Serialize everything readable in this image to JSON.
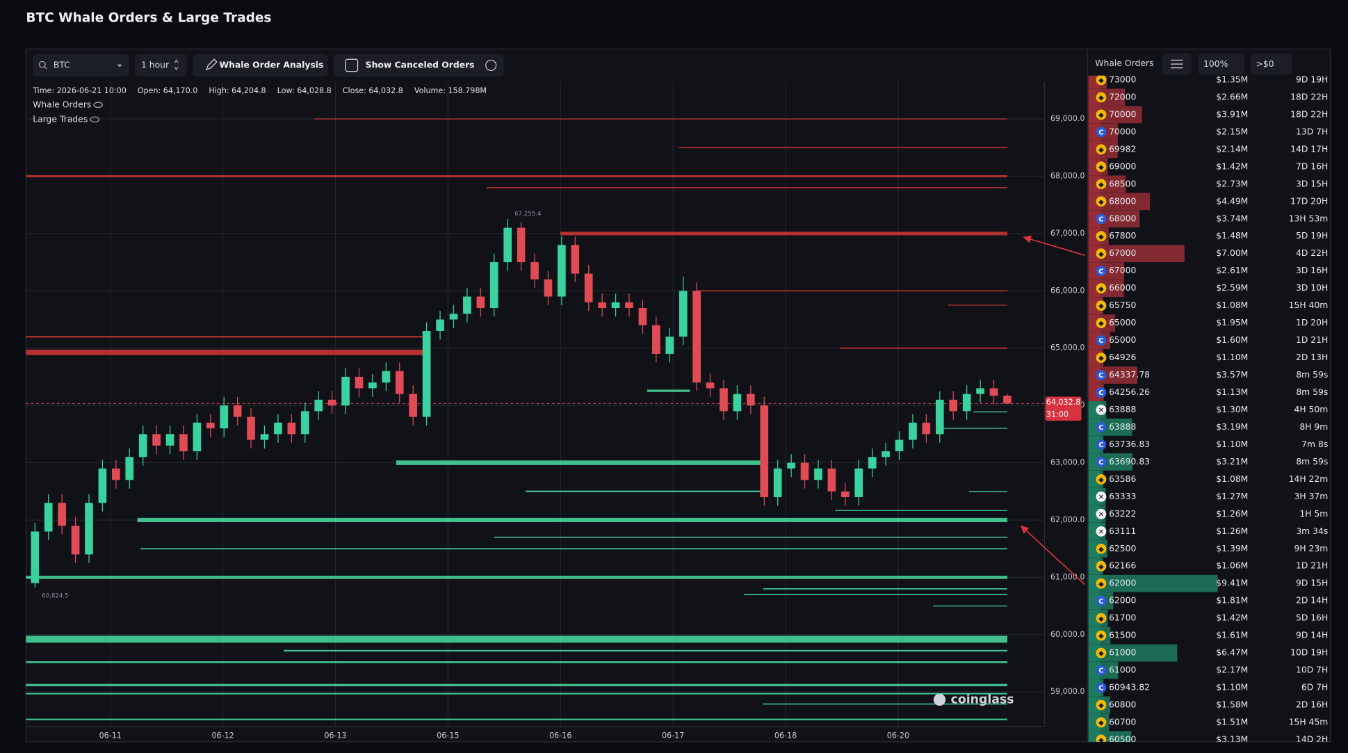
{
  "header": {
    "title": "BTC Whale Orders & Large Trades"
  },
  "toolbar": {
    "symbol": "BTC",
    "interval": "1 hour",
    "analysis_button": "Whale Order Analysis",
    "canceled_toggle": "Show Canceled Orders"
  },
  "chart_data": {
    "type": "candlestick",
    "info": [
      "Time: 2026-06-21 10:00",
      "Open: 64,170.0",
      "High: 64,204.8",
      "Low: 64,028.8",
      "Close: 64,032.8",
      "Volume: 158.798M"
    ],
    "legend": [
      "Whale Orders",
      "Large Trades"
    ],
    "up_color": "#3ad29f",
    "down_color": "#e04b55",
    "x": [
      0.33,
      0.45,
      0.57,
      0.69,
      0.81,
      0.93,
      1.05,
      1.17,
      1.29,
      1.41,
      1.53,
      1.65,
      1.77,
      1.89,
      2.01,
      2.13,
      2.25,
      2.37,
      2.49,
      2.61,
      2.73,
      2.85,
      2.97,
      3.09,
      3.21,
      3.33,
      3.45,
      3.57,
      3.69,
      3.81,
      3.93,
      4.05,
      4.17,
      4.29,
      4.41,
      4.53,
      4.65,
      4.77,
      4.89,
      5.01,
      5.13,
      5.25,
      5.37,
      5.49,
      5.61,
      5.73,
      5.85,
      5.97,
      6.09,
      6.21,
      6.33,
      6.45,
      6.57,
      6.69,
      6.81,
      6.93,
      7.05,
      7.17,
      7.29,
      7.41,
      7.53,
      7.65,
      7.77,
      7.89,
      8.01,
      8.13,
      8.25,
      8.37,
      8.49,
      8.61,
      8.73,
      8.85,
      8.97
    ],
    "open": [
      60900,
      61800,
      62300,
      61900,
      61400,
      62300,
      62900,
      62700,
      63100,
      63500,
      63300,
      63500,
      63200,
      63700,
      63600,
      64000,
      63800,
      63400,
      63500,
      63700,
      63500,
      63900,
      64100,
      64000,
      64500,
      64300,
      64400,
      64600,
      64200,
      63800,
      65300,
      65500,
      65600,
      65900,
      65700,
      66500,
      67100,
      66500,
      66200,
      65900,
      66800,
      66300,
      65800,
      65700,
      65800,
      65700,
      65400,
      64900,
      65200,
      66000,
      64400,
      64300,
      63900,
      64200,
      64000,
      62400,
      62900,
      63000,
      62700,
      62900,
      62500,
      62400,
      62900,
      63100,
      63200,
      63400,
      63700,
      63500,
      64100,
      63900,
      64200,
      64300,
      64170
    ],
    "high": [
      61950,
      62450,
      62450,
      62050,
      62450,
      63050,
      63050,
      63250,
      63650,
      63650,
      63650,
      63650,
      63850,
      63850,
      64150,
      64150,
      63950,
      63650,
      63850,
      63850,
      64050,
      64250,
      64250,
      64650,
      64650,
      64550,
      64750,
      64750,
      64350,
      65450,
      65650,
      65750,
      66050,
      66050,
      66650,
      67255.4,
      67200,
      66650,
      66350,
      66950,
      66950,
      66450,
      65950,
      65950,
      65950,
      65850,
      65550,
      65350,
      66250,
      66150,
      64550,
      64450,
      64350,
      64350,
      64150,
      63050,
      63150,
      63150,
      63050,
      63050,
      62650,
      63050,
      63250,
      63350,
      63550,
      63850,
      63850,
      64250,
      64250,
      64350,
      64450,
      64450,
      64204.8
    ],
    "low": [
      60824.5,
      61650,
      61750,
      61250,
      61250,
      62150,
      62550,
      62550,
      62950,
      63150,
      63150,
      63050,
      63050,
      63450,
      63450,
      63650,
      63250,
      63250,
      63350,
      63350,
      63350,
      63750,
      63850,
      63850,
      64150,
      64150,
      64250,
      64050,
      63650,
      63650,
      65150,
      65350,
      65450,
      65550,
      65550,
      66350,
      66350,
      66050,
      65750,
      65750,
      66150,
      65650,
      65550,
      65550,
      65550,
      65250,
      64750,
      64750,
      65050,
      64250,
      64150,
      63750,
      63750,
      63850,
      62250,
      62250,
      62750,
      62550,
      62550,
      62350,
      62250,
      62250,
      62750,
      62950,
      63050,
      63250,
      63350,
      63350,
      63750,
      63750,
      64050,
      64020,
      64028.8
    ],
    "close": [
      61800,
      62300,
      61900,
      61400,
      62300,
      62900,
      62700,
      63100,
      63500,
      63300,
      63500,
      63200,
      63700,
      63600,
      64000,
      63800,
      63400,
      63500,
      63700,
      63500,
      63900,
      64100,
      64000,
      64500,
      64300,
      64400,
      64600,
      64200,
      63800,
      65300,
      65500,
      65600,
      65900,
      65700,
      66500,
      67100,
      66500,
      66200,
      65900,
      66800,
      66300,
      65800,
      65700,
      65800,
      65700,
      65400,
      64900,
      65200,
      66000,
      64400,
      64300,
      63900,
      64200,
      64000,
      62400,
      62900,
      63000,
      62700,
      62900,
      62500,
      62400,
      62900,
      63100,
      63200,
      63400,
      63700,
      63500,
      64100,
      63900,
      64200,
      64300,
      64170,
      64032.8
    ],
    "xlim": [
      0.25,
      9.3
    ],
    "xticks": [
      {
        "value": 1,
        "label": "06-11"
      },
      {
        "value": 2,
        "label": "06-12"
      },
      {
        "value": 3,
        "label": "06-13"
      },
      {
        "value": 4,
        "label": "06-15"
      },
      {
        "value": 5,
        "label": "06-16"
      },
      {
        "value": 6,
        "label": "06-17"
      },
      {
        "value": 7,
        "label": "06-18"
      },
      {
        "value": 8,
        "label": "06-20"
      }
    ],
    "ylim": [
      58400,
      69650
    ],
    "yticks": [
      {
        "value": 59000,
        "label": "59,000.0"
      },
      {
        "value": 60000,
        "label": "60,000.0"
      },
      {
        "value": 61000,
        "label": "61,000.0"
      },
      {
        "value": 62000,
        "label": "62,000.0"
      },
      {
        "value": 63000,
        "label": "63,000.0"
      },
      {
        "value": 64000,
        "label": "64,000.0"
      },
      {
        "value": 65000,
        "label": "65,000.0"
      },
      {
        "value": 66000,
        "label": "66,000.0"
      },
      {
        "value": 67000,
        "label": "67,000.0"
      },
      {
        "value": 68000,
        "label": "68,000.0"
      },
      {
        "value": 69000,
        "label": "69,000.0"
      }
    ],
    "grid": true,
    "sell_lines": {
      "color": "#c93434",
      "price": [
        69000,
        68500,
        68000,
        67800,
        67000,
        66000,
        65750,
        65200,
        64926,
        65000
      ],
      "start": [
        2.81,
        6.05,
        0.25,
        4.34,
        5.0,
        6.21,
        8.44,
        0.25,
        0.25,
        7.48
      ],
      "end": [
        8.97,
        8.97,
        8.97,
        8.97,
        8.97,
        8.97,
        8.97,
        3.81,
        3.81,
        8.97
      ],
      "size": [
        1.2,
        1.4,
        2.5,
        1.5,
        4.5,
        1.5,
        1.1,
        2.0,
        7.0,
        1.6
      ]
    },
    "buy_lines": {
      "color": "#46d39a",
      "price": [
        64256,
        63888,
        63600,
        63000,
        62500,
        62500,
        62166,
        62000,
        61700,
        61500,
        61000,
        60800,
        60700,
        60500,
        59920,
        59720,
        59520,
        59120,
        58970,
        58790,
        58520
      ],
      "start": [
        5.77,
        8.67,
        8.4,
        3.54,
        4.69,
        8.63,
        7.44,
        1.24,
        4.41,
        1.27,
        0.25,
        6.8,
        6.63,
        8.31,
        0.25,
        2.54,
        0.25,
        0.25,
        0.25,
        6.8,
        0.25
      ],
      "end": [
        6.15,
        8.97,
        8.97,
        6.79,
        6.79,
        8.97,
        8.97,
        8.97,
        8.97,
        8.97,
        8.97,
        8.97,
        8.97,
        8.97,
        8.97,
        8.97,
        8.97,
        8.97,
        8.97,
        8.97,
        8.97
      ],
      "size": [
        3,
        1.3,
        1,
        6,
        2,
        1.4,
        1.2,
        5.5,
        1.4,
        1.6,
        4,
        1.5,
        1.5,
        1.2,
        9,
        2,
        2.5,
        3,
        2,
        1.5,
        2
      ]
    },
    "annotations": [
      {
        "x": 4.53,
        "y": 67255.4,
        "label": "67,255.4"
      },
      {
        "x": 0.33,
        "y": 60824.5,
        "label": "60,824.5"
      }
    ],
    "last_price": {
      "value": 64032.8,
      "label": "64,032.8",
      "countdown": "31:00"
    },
    "watermark": "coinglass"
  },
  "orders_panel": {
    "title": "Whale Orders",
    "zoom": "100%",
    "filter": ">$0",
    "sell_color": "#a8303a",
    "buy_color": "#1f8a6a",
    "exchanges": [
      {
        "glyph": "◆",
        "color": "#f0b90b",
        "text_color": "#1a1a1a"
      },
      {
        "glyph": "C",
        "color": "#2a5ada",
        "text_color": "#ffffff"
      },
      {
        "glyph": "✕",
        "color": "#f2f2f2",
        "text_color": "#111111"
      }
    ],
    "sell_orders": [
      {
        "price": 73000,
        "exchange": 0,
        "amount": 1.35,
        "amount_label": "$1.35M",
        "age": "9D 19H"
      },
      {
        "price": 72000,
        "exchange": 0,
        "amount": 2.66,
        "amount_label": "$2.66M",
        "age": "18D 22H"
      },
      {
        "price": 70000,
        "exchange": 0,
        "amount": 3.91,
        "amount_label": "$3.91M",
        "age": "18D 22H"
      },
      {
        "price": 70000,
        "exchange": 1,
        "amount": 2.15,
        "amount_label": "$2.15M",
        "age": "13D 7H"
      },
      {
        "price": 69982,
        "exchange": 0,
        "amount": 2.14,
        "amount_label": "$2.14M",
        "age": "14D 17H"
      },
      {
        "price": 69000,
        "exchange": 0,
        "amount": 1.42,
        "amount_label": "$1.42M",
        "age": "7D 16H"
      },
      {
        "price": 68500,
        "exchange": 0,
        "amount": 2.73,
        "amount_label": "$2.73M",
        "age": "3D 15H"
      },
      {
        "price": 68000,
        "exchange": 0,
        "amount": 4.49,
        "amount_label": "$4.49M",
        "age": "17D 20H"
      },
      {
        "price": 68000,
        "exchange": 1,
        "amount": 3.74,
        "amount_label": "$3.74M",
        "age": "13H 53m"
      },
      {
        "price": 67800,
        "exchange": 0,
        "amount": 1.48,
        "amount_label": "$1.48M",
        "age": "5D 19H"
      },
      {
        "price": 67000,
        "exchange": 0,
        "amount": 7,
        "amount_label": "$7.00M",
        "age": "4D 22H"
      },
      {
        "price": 67000,
        "exchange": 1,
        "amount": 2.61,
        "amount_label": "$2.61M",
        "age": "3D 16H"
      },
      {
        "price": 66000,
        "exchange": 0,
        "amount": 2.59,
        "amount_label": "$2.59M",
        "age": "3D 10H"
      },
      {
        "price": 65750,
        "exchange": 0,
        "amount": 1.08,
        "amount_label": "$1.08M",
        "age": "15H 40m"
      },
      {
        "price": 65000,
        "exchange": 0,
        "amount": 1.95,
        "amount_label": "$1.95M",
        "age": "1D 20H"
      },
      {
        "price": 65000,
        "exchange": 1,
        "amount": 1.6,
        "amount_label": "$1.60M",
        "age": "1D 21H"
      },
      {
        "price": 64926,
        "exchange": 0,
        "amount": 1.1,
        "amount_label": "$1.10M",
        "age": "2D 13H"
      },
      {
        "price": 64337.78,
        "exchange": 1,
        "amount": 3.57,
        "amount_label": "$3.57M",
        "age": "8m 59s"
      },
      {
        "price": 64256.26,
        "exchange": 1,
        "amount": 1.13,
        "amount_label": "$1.13M",
        "age": "8m 59s"
      }
    ],
    "buy_orders": [
      {
        "price": 63888,
        "exchange": 2,
        "amount": 1.3,
        "amount_label": "$1.30M",
        "age": "4H 50m"
      },
      {
        "price": 63888,
        "exchange": 1,
        "amount": 3.19,
        "amount_label": "$3.19M",
        "age": "8H 9m"
      },
      {
        "price": 63736.83,
        "exchange": 1,
        "amount": 1.1,
        "amount_label": "$1.10M",
        "age": "7m 8s"
      },
      {
        "price": 63690.83,
        "exchange": 1,
        "amount": 3.21,
        "amount_label": "$3.21M",
        "age": "8m 59s"
      },
      {
        "price": 63586,
        "exchange": 0,
        "amount": 1.08,
        "amount_label": "$1.08M",
        "age": "14H 22m"
      },
      {
        "price": 63333,
        "exchange": 2,
        "amount": 1.27,
        "amount_label": "$1.27M",
        "age": "3H 37m"
      },
      {
        "price": 63222,
        "exchange": 2,
        "amount": 1.26,
        "amount_label": "$1.26M",
        "age": "1H 5m"
      },
      {
        "price": 63111,
        "exchange": 2,
        "amount": 1.26,
        "amount_label": "$1.26M",
        "age": "3m 34s"
      },
      {
        "price": 62500,
        "exchange": 0,
        "amount": 1.39,
        "amount_label": "$1.39M",
        "age": "9H 23m"
      },
      {
        "price": 62166,
        "exchange": 0,
        "amount": 1.06,
        "amount_label": "$1.06M",
        "age": "1D 21H"
      },
      {
        "price": 62000,
        "exchange": 0,
        "amount": 9.41,
        "amount_label": "$9.41M",
        "age": "9D 15H"
      },
      {
        "price": 62000,
        "exchange": 1,
        "amount": 1.81,
        "amount_label": "$1.81M",
        "age": "2D 14H"
      },
      {
        "price": 61700,
        "exchange": 0,
        "amount": 1.42,
        "amount_label": "$1.42M",
        "age": "5D 16H"
      },
      {
        "price": 61500,
        "exchange": 0,
        "amount": 1.61,
        "amount_label": "$1.61M",
        "age": "9D 14H"
      },
      {
        "price": 61000,
        "exchange": 0,
        "amount": 6.47,
        "amount_label": "$6.47M",
        "age": "10D 19H"
      },
      {
        "price": 61000,
        "exchange": 1,
        "amount": 2.17,
        "amount_label": "$2.17M",
        "age": "10D 7H"
      },
      {
        "price": 60943.82,
        "exchange": 1,
        "amount": 1.1,
        "amount_label": "$1.10M",
        "age": "6D 7H"
      },
      {
        "price": 60800,
        "exchange": 0,
        "amount": 1.58,
        "amount_label": "$1.58M",
        "age": "2D 16H"
      },
      {
        "price": 60700,
        "exchange": 0,
        "amount": 1.51,
        "amount_label": "$1.51M",
        "age": "15H 45m"
      },
      {
        "price": 60500,
        "exchange": 0,
        "amount": 3.13,
        "amount_label": "$3.13M",
        "age": "14D 2H"
      }
    ]
  }
}
